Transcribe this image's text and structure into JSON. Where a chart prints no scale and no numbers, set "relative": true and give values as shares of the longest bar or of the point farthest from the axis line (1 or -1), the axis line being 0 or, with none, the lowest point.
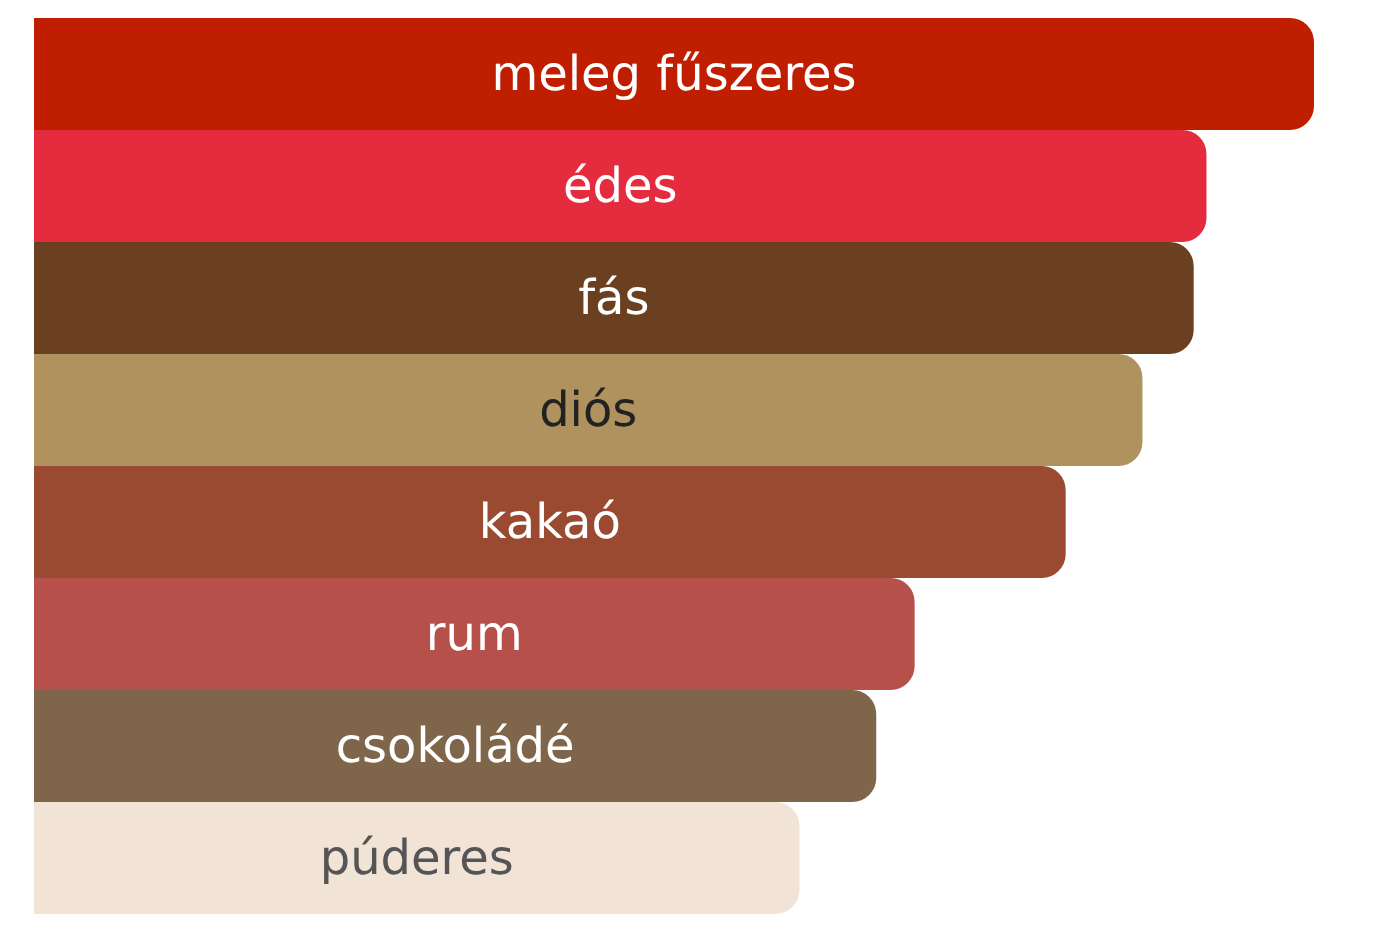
{
  "chart_data": {
    "type": "bar",
    "orientation": "horizontal",
    "relative": true,
    "categories": [
      "meleg fűszeres",
      "édes",
      "fás",
      "diós",
      "kakaó",
      "rum",
      "csokoládé",
      "púderes"
    ],
    "values": [
      1,
      0.916,
      0.906,
      0.866,
      0.806,
      0.688,
      0.658,
      0.598
    ],
    "colors": [
      "#bf1e00",
      "#e52b3e",
      "#6b4020",
      "#b0925f",
      "#994a30",
      "#b5504a",
      "#7f654a",
      "#f2e3d7"
    ]
  }
}
